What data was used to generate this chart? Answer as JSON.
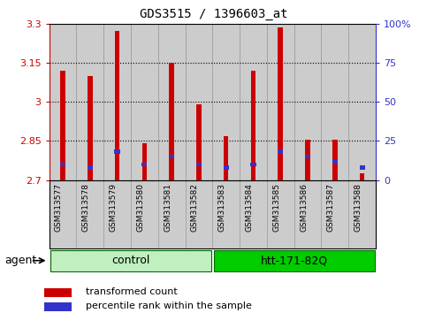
{
  "title": "GDS3515 / 1396603_at",
  "samples": [
    "GSM313577",
    "GSM313578",
    "GSM313579",
    "GSM313580",
    "GSM313581",
    "GSM313582",
    "GSM313583",
    "GSM313584",
    "GSM313585",
    "GSM313586",
    "GSM313587",
    "GSM313588"
  ],
  "transformed_count": [
    3.12,
    3.1,
    3.27,
    2.84,
    3.148,
    2.99,
    2.867,
    3.12,
    3.285,
    2.855,
    2.855,
    2.725
  ],
  "percentile_rank_pct": [
    10,
    8,
    18,
    10,
    15,
    10,
    8,
    10,
    18,
    15,
    12,
    8
  ],
  "ymin": 2.7,
  "ymax": 3.3,
  "yticks": [
    2.7,
    2.85,
    3.0,
    3.15,
    3.3
  ],
  "ytick_labels": [
    "2.7",
    "2.85",
    "3",
    "3.15",
    "3.3"
  ],
  "right_yticks_pct": [
    0,
    25,
    50,
    75,
    100
  ],
  "right_ytick_labels": [
    "0",
    "25",
    "50",
    "75",
    "100%"
  ],
  "gridlines": [
    2.85,
    3.0,
    3.15
  ],
  "bar_color": "#cc0000",
  "percentile_color": "#3333cc",
  "bar_width": 0.18,
  "groups": [
    {
      "label": "control",
      "start": 0,
      "end": 5,
      "color": "#c0f0c0",
      "edgecolor": "#006600"
    },
    {
      "label": "htt-171-82Q",
      "start": 6,
      "end": 11,
      "color": "#00cc00",
      "edgecolor": "#006600"
    }
  ],
  "agent_label": "agent",
  "legend_items": [
    {
      "label": "transformed count",
      "color": "#cc0000"
    },
    {
      "label": "percentile rank within the sample",
      "color": "#3333cc"
    }
  ],
  "left_axis_color": "#cc0000",
  "right_axis_color": "#3333cc",
  "col_bg_color": "#cccccc",
  "col_border_color": "#999999"
}
